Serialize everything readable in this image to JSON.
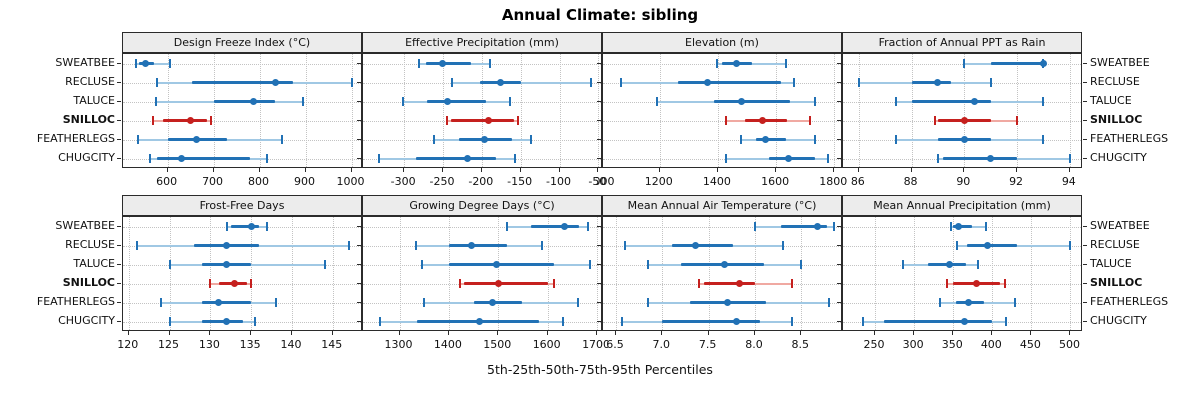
{
  "title": "Annual Climate: sibling",
  "x_axis_caption": "5th-25th-50th-75th-95th Percentiles",
  "colors": {
    "series_blue": "#2171B5",
    "series_blue_light": "#A0C8E4",
    "highlight_red": "#C5201E",
    "highlight_red_light": "#F0A9A2",
    "strip_background": "#ECECEC",
    "panel_border": "#2B2B2B",
    "gridline": "#C3C3C3"
  },
  "chart_data": {
    "type": "scatter",
    "variant": "percentile-dot-whisker-trellis",
    "percentiles": [
      5,
      25,
      50,
      75,
      95
    ],
    "categories": [
      "SWEATBEE",
      "RECLUSE",
      "TALUCE",
      "SNILLOC",
      "FEATHERLEGS",
      "CHUGCITY"
    ],
    "highlighted_category": "SNILLOC",
    "category_labels_shown_on": "both-sides",
    "grid": "dotted",
    "layout": "2 rows x 4 columns",
    "panels": [
      {
        "title": "Design Freeze Index (°C)",
        "xlim": [
          503,
          1025
        ],
        "ticks": [
          600,
          700,
          800,
          900,
          1000
        ],
        "tick_labels": [
          "600",
          "700",
          "800",
          "900",
          "1000"
        ],
        "values": [
          [
            532,
            538,
            552,
            570,
            606
          ],
          [
            578,
            654,
            835,
            872,
            1000
          ],
          [
            575,
            700,
            787,
            833,
            895
          ],
          [
            568,
            590,
            650,
            686,
            694
          ],
          [
            535,
            600,
            662,
            730,
            849
          ],
          [
            562,
            578,
            630,
            780,
            816
          ]
        ]
      },
      {
        "title": "Effective Precipitation (mm)",
        "xlim": [
          -353,
          -44
        ],
        "ticks": [
          -300,
          -250,
          -200,
          -150,
          -100,
          -50
        ],
        "tick_labels": [
          "-300",
          "-250",
          "-200",
          "-150",
          "-100",
          "-50"
        ],
        "values": [
          [
            -281,
            -272,
            -251,
            -214,
            -190
          ],
          [
            -238,
            -202,
            -176,
            -150,
            -60
          ],
          [
            -301,
            -270,
            -244,
            -195,
            -164
          ],
          [
            -245,
            -240,
            -191,
            -158,
            -154
          ],
          [
            -262,
            -229,
            -196,
            -161,
            -137
          ],
          [
            -332,
            -285,
            -218,
            -182,
            -157
          ]
        ]
      },
      {
        "title": "Elevation (m)",
        "xlim": [
          1005,
          1830
        ],
        "ticks": [
          1000,
          1200,
          1400,
          1600,
          1800
        ],
        "tick_labels": [
          "1000",
          "1200",
          "1400",
          "1600",
          "1800"
        ],
        "values": [
          [
            1398,
            1415,
            1464,
            1516,
            1633
          ],
          [
            1067,
            1262,
            1363,
            1616,
            1661
          ],
          [
            1192,
            1385,
            1481,
            1649,
            1734
          ],
          [
            1428,
            1492,
            1554,
            1638,
            1715
          ],
          [
            1481,
            1531,
            1562,
            1633,
            1734
          ],
          [
            1428,
            1574,
            1642,
            1734,
            1777
          ]
        ]
      },
      {
        "title": "Fraction of Annual PPT as Rain",
        "xlim": [
          85.4,
          94.5
        ],
        "ticks": [
          86,
          88,
          90,
          92,
          94
        ],
        "tick_labels": [
          "86",
          "88",
          "90",
          "92",
          "94"
        ],
        "values": [
          [
            90,
            91,
            93,
            93,
            93
          ],
          [
            86,
            88,
            89,
            89.5,
            91
          ],
          [
            87.4,
            88,
            90.4,
            91,
            93
          ],
          [
            88.9,
            89,
            90,
            91,
            92
          ],
          [
            87.4,
            89,
            90,
            91,
            93
          ],
          [
            89,
            89.2,
            91,
            92,
            94
          ]
        ]
      },
      {
        "title": "Frost-Free Days",
        "xlim": [
          119.3,
          148.7
        ],
        "ticks": [
          120,
          125,
          130,
          135,
          140,
          145
        ],
        "tick_labels": [
          "120",
          "125",
          "130",
          "135",
          "140",
          "145"
        ],
        "values": [
          [
            132,
            132.5,
            135,
            136,
            137
          ],
          [
            121,
            128,
            132,
            136,
            147
          ],
          [
            125,
            129,
            132,
            135,
            144
          ],
          [
            130,
            131,
            133,
            134.5,
            135
          ],
          [
            124,
            129,
            131,
            135,
            138
          ],
          [
            125,
            129,
            132,
            134,
            135.5
          ]
        ]
      },
      {
        "title": "Growing Degree Days (°C)",
        "xlim": [
          1226,
          1712
        ],
        "ticks": [
          1300,
          1400,
          1500,
          1600,
          1700
        ],
        "tick_labels": [
          "1300",
          "1400",
          "1500",
          "1600",
          "1700"
        ],
        "values": [
          [
            1517,
            1566,
            1634,
            1664,
            1681
          ],
          [
            1334,
            1400,
            1446,
            1517,
            1589
          ],
          [
            1345,
            1400,
            1496,
            1612,
            1686
          ],
          [
            1422,
            1430,
            1500,
            1600,
            1612
          ],
          [
            1350,
            1450,
            1488,
            1548,
            1662
          ],
          [
            1260,
            1335,
            1462,
            1583,
            1632
          ]
        ]
      },
      {
        "title": "Mean Annual Air Temperature (°C)",
        "xlim": [
          6.36,
          8.95
        ],
        "ticks": [
          6.5,
          7.0,
          7.5,
          8.0,
          8.5
        ],
        "tick_labels": [
          "6.5",
          "7.0",
          "7.5",
          "8.0",
          "8.5"
        ],
        "values": [
          [
            8.0,
            8.28,
            8.68,
            8.78,
            8.85
          ],
          [
            6.6,
            7.1,
            7.36,
            7.76,
            8.3
          ],
          [
            6.85,
            7.2,
            7.67,
            8.1,
            8.5
          ],
          [
            7.4,
            7.45,
            7.83,
            8.0,
            8.4
          ],
          [
            6.85,
            7.3,
            7.7,
            8.12,
            8.8
          ],
          [
            6.57,
            7.0,
            7.8,
            8.05,
            8.4
          ]
        ]
      },
      {
        "title": "Mean Annual Precipitation (mm)",
        "xlim": [
          209,
          516
        ],
        "ticks": [
          250,
          300,
          350,
          400,
          450,
          500
        ],
        "tick_labels": [
          "250",
          "300",
          "350",
          "400",
          "450",
          "500"
        ],
        "values": [
          [
            347,
            350,
            357,
            374,
            392
          ],
          [
            355,
            368,
            394,
            432,
            500
          ],
          [
            286,
            318,
            345,
            366,
            382
          ],
          [
            342,
            350,
            380,
            410,
            416
          ],
          [
            333,
            354,
            370,
            390,
            429
          ],
          [
            234,
            261,
            365,
            400,
            417
          ]
        ]
      }
    ]
  }
}
